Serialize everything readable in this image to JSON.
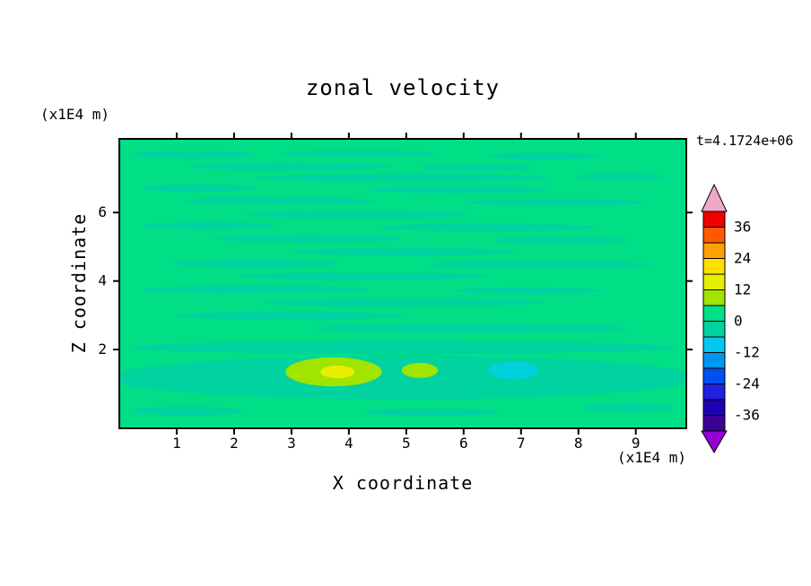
{
  "figure": {
    "title": "zonal velocity",
    "timestamp": "t=4.1724e+06"
  },
  "axes": {
    "xlabel": "X coordinate",
    "ylabel": "Z coordinate",
    "x_unit": "(x1E4 m)",
    "y_unit": "(x1E4 m)",
    "xlim": [
      0,
      9.88
    ],
    "ylim": [
      -0.3,
      8.15
    ],
    "x_ticks": [
      1,
      2,
      3,
      4,
      5,
      6,
      7,
      8,
      9
    ],
    "y_ticks": [
      2,
      4,
      6
    ]
  },
  "colorbar": {
    "tick_labels": [
      "36",
      "24",
      "12",
      "0",
      "-12",
      "-24",
      "-36"
    ],
    "level_step": 6,
    "range": [
      -42,
      42
    ],
    "cells_top_to_bottom": [
      "#f00000",
      "#ff5a00",
      "#ffa000",
      "#ffe000",
      "#e8ee00",
      "#a0e400",
      "#00df85",
      "#00d2a0",
      "#00c8f0",
      "#0096f0",
      "#0050f0",
      "#2020e0",
      "#1e00b4",
      "#3c0096"
    ],
    "arrow_top_color": "#f0a8c8",
    "arrow_bottom_color": "#9400d3"
  },
  "chart_data": {
    "type": "heatmap",
    "title": "zonal velocity",
    "xlabel": "X coordinate",
    "ylabel": "Z coordinate",
    "x_unit": "(x1E4 m)",
    "z_unit": "(x1E4 m)",
    "time_label": "t=4.1724e+06",
    "contour_level_step": 6,
    "colorbar_ticks": [
      36,
      24,
      12,
      0,
      -12,
      -24,
      -36
    ],
    "visible_value_range": [
      -12,
      18
    ],
    "xlim": [
      0,
      9.88
    ],
    "ylim": [
      -0.3,
      8.15
    ],
    "description": "Filled-contour field of zonal velocity, nearly uniform around 0 (spring green, 0..6 band) with thin horizontal streaks of the -6..0 band throughout, a broad -6..0 band near the bottom (z~1-2) containing 6..12 yellow-green patches near x=3.5-5.3, a small 12..18 yellow core near x=3.8, and a -12..-6 cyan patch near x=6.8.",
    "palette": {
      "base": "#00df85",
      "band": "#00d2a0",
      "yellow_green": "#a0e400",
      "yellow": "#e8ee00",
      "cyan": "#00d2dc"
    },
    "bands": [
      {
        "c": "band",
        "cx": 0.13,
        "cy": 0.055,
        "rx": 0.11,
        "ry": 0.013
      },
      {
        "c": "band",
        "cx": 0.42,
        "cy": 0.05,
        "rx": 0.14,
        "ry": 0.011
      },
      {
        "c": "band",
        "cx": 0.75,
        "cy": 0.06,
        "rx": 0.1,
        "ry": 0.012
      },
      {
        "c": "band",
        "cx": 0.3,
        "cy": 0.095,
        "rx": 0.18,
        "ry": 0.012
      },
      {
        "c": "band",
        "cx": 0.63,
        "cy": 0.1,
        "rx": 0.1,
        "ry": 0.01
      },
      {
        "c": "band",
        "cx": 0.5,
        "cy": 0.135,
        "rx": 0.26,
        "ry": 0.013
      },
      {
        "c": "band",
        "cx": 0.88,
        "cy": 0.13,
        "rx": 0.08,
        "ry": 0.01
      },
      {
        "c": "band",
        "cx": 0.14,
        "cy": 0.17,
        "rx": 0.1,
        "ry": 0.012
      },
      {
        "c": "band",
        "cx": 0.6,
        "cy": 0.175,
        "rx": 0.16,
        "ry": 0.013
      },
      {
        "c": "band",
        "cx": 0.28,
        "cy": 0.215,
        "rx": 0.17,
        "ry": 0.013
      },
      {
        "c": "band",
        "cx": 0.77,
        "cy": 0.22,
        "rx": 0.16,
        "ry": 0.012
      },
      {
        "c": "band",
        "cx": 0.42,
        "cy": 0.26,
        "rx": 0.2,
        "ry": 0.013
      },
      {
        "c": "band",
        "cx": 0.16,
        "cy": 0.3,
        "rx": 0.12,
        "ry": 0.012
      },
      {
        "c": "band",
        "cx": 0.65,
        "cy": 0.305,
        "rx": 0.19,
        "ry": 0.013
      },
      {
        "c": "band",
        "cx": 0.33,
        "cy": 0.345,
        "rx": 0.17,
        "ry": 0.013
      },
      {
        "c": "band",
        "cx": 0.78,
        "cy": 0.35,
        "rx": 0.12,
        "ry": 0.012
      },
      {
        "c": "band",
        "cx": 0.5,
        "cy": 0.39,
        "rx": 0.2,
        "ry": 0.013
      },
      {
        "c": "band",
        "cx": 0.24,
        "cy": 0.43,
        "rx": 0.15,
        "ry": 0.013
      },
      {
        "c": "band",
        "cx": 0.74,
        "cy": 0.435,
        "rx": 0.2,
        "ry": 0.013
      },
      {
        "c": "band",
        "cx": 0.43,
        "cy": 0.475,
        "rx": 0.22,
        "ry": 0.013
      },
      {
        "c": "band",
        "cx": 0.24,
        "cy": 0.52,
        "rx": 0.2,
        "ry": 0.013
      },
      {
        "c": "band",
        "cx": 0.72,
        "cy": 0.525,
        "rx": 0.13,
        "ry": 0.012
      },
      {
        "c": "band",
        "cx": 0.5,
        "cy": 0.565,
        "rx": 0.25,
        "ry": 0.014
      },
      {
        "c": "band",
        "cx": 0.3,
        "cy": 0.61,
        "rx": 0.2,
        "ry": 0.014
      },
      {
        "c": "band",
        "cx": 0.62,
        "cy": 0.655,
        "rx": 0.28,
        "ry": 0.015
      },
      {
        "c": "band",
        "cx": 0.5,
        "cy": 0.72,
        "rx": 0.48,
        "ry": 0.022
      },
      {
        "c": "band",
        "cx": 0.5,
        "cy": 0.825,
        "rx": 0.52,
        "ry": 0.075
      },
      {
        "c": "base",
        "cx": 0.5,
        "cy": 0.975,
        "rx": 0.52,
        "ry": 0.04
      },
      {
        "c": "yellow_green",
        "cx": 0.378,
        "cy": 0.805,
        "rx": 0.085,
        "ry": 0.05
      },
      {
        "c": "yellow",
        "cx": 0.385,
        "cy": 0.805,
        "rx": 0.03,
        "ry": 0.022
      },
      {
        "c": "yellow_green",
        "cx": 0.53,
        "cy": 0.8,
        "rx": 0.032,
        "ry": 0.026
      },
      {
        "c": "cyan",
        "cx": 0.695,
        "cy": 0.8,
        "rx": 0.045,
        "ry": 0.03
      },
      {
        "c": "band",
        "cx": 0.12,
        "cy": 0.94,
        "rx": 0.1,
        "ry": 0.015
      },
      {
        "c": "band",
        "cx": 0.55,
        "cy": 0.945,
        "rx": 0.12,
        "ry": 0.012
      },
      {
        "c": "band",
        "cx": 0.9,
        "cy": 0.93,
        "rx": 0.08,
        "ry": 0.014
      }
    ]
  }
}
